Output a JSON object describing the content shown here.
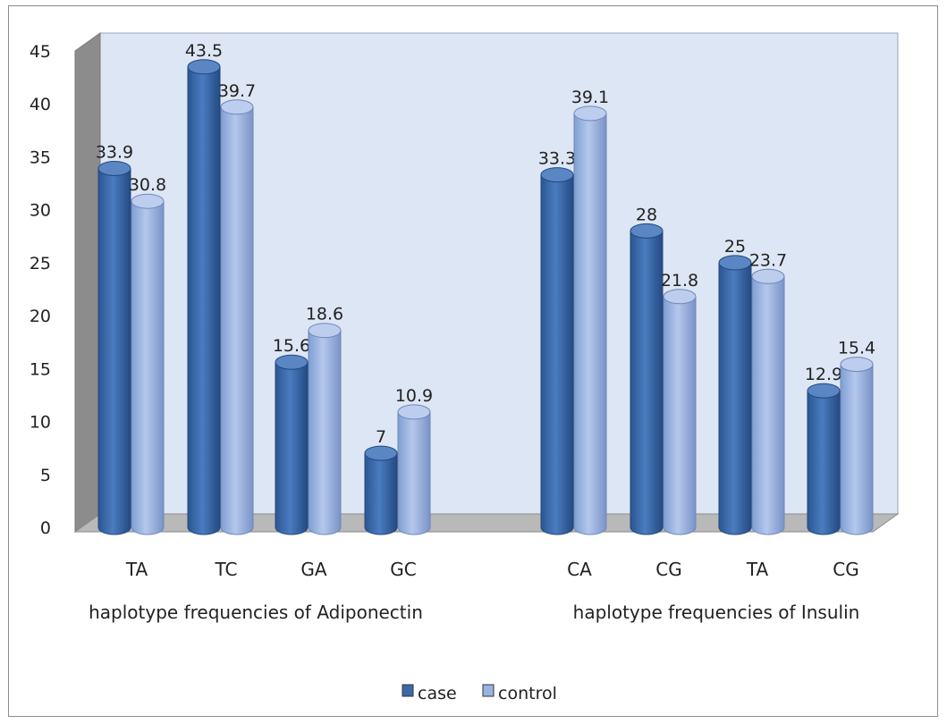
{
  "chart_data": {
    "type": "bar",
    "style": "3d-cylinder",
    "groups": [
      {
        "label": "haplotype frequencies of Adiponectin",
        "categories": [
          "TA",
          "TC",
          "GA",
          "GC"
        ]
      },
      {
        "label": "haplotype frequencies of Insulin",
        "categories": [
          "CA",
          "CG",
          "TA",
          "CG"
        ]
      }
    ],
    "categories": [
      "TA",
      "TC",
      "GA",
      "GC",
      "CA",
      "CG",
      "TA",
      "CG"
    ],
    "series": [
      {
        "name": "case",
        "color": "#3b68a8",
        "values": [
          33.9,
          43.5,
          15.6,
          7,
          33.3,
          28,
          25,
          12.9
        ]
      },
      {
        "name": "control",
        "color": "#98b3e0",
        "values": [
          30.8,
          39.7,
          18.6,
          10.9,
          39.1,
          21.8,
          23.7,
          15.4
        ]
      }
    ],
    "data_labels": [
      "33.9",
      "43.5",
      "15.6",
      "7",
      "33.3",
      "28",
      "25",
      "12.9",
      "30.8",
      "39.7",
      "18.6",
      "10.9",
      "39.1",
      "21.8",
      "23.7",
      "15.4"
    ],
    "ylim": [
      0,
      45
    ],
    "yticks": [
      "0",
      "5",
      "10",
      "15",
      "20",
      "25",
      "30",
      "35",
      "40",
      "45"
    ],
    "legend": {
      "position": "bottom",
      "entries": [
        "case",
        "control"
      ]
    },
    "colors": {
      "wall": "#dde6f4",
      "floor": "#b9b9b9",
      "side": "#8c8c8c"
    }
  }
}
